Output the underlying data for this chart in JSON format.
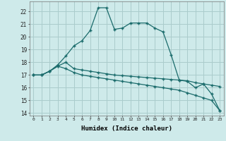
{
  "xlabel": "Humidex (Indice chaleur)",
  "background_color": "#ceeaea",
  "grid_color": "#aacccc",
  "line_color": "#1a6b6b",
  "xlim": [
    -0.5,
    23.5
  ],
  "ylim": [
    13.8,
    22.8
  ],
  "yticks": [
    14,
    15,
    16,
    17,
    18,
    19,
    20,
    21,
    22
  ],
  "xticks": [
    0,
    1,
    2,
    3,
    4,
    5,
    6,
    7,
    8,
    9,
    10,
    11,
    12,
    13,
    14,
    15,
    16,
    17,
    18,
    19,
    20,
    21,
    22,
    23
  ],
  "series1": [
    17,
    17,
    17.3,
    17.8,
    18.5,
    19.3,
    19.7,
    20.5,
    22.3,
    22.3,
    20.6,
    20.7,
    21.1,
    21.1,
    21.1,
    20.7,
    20.4,
    18.6,
    16.6,
    16.5,
    16.0,
    16.3,
    15.5,
    14.2
  ],
  "series2": [
    17,
    17,
    17.3,
    17.7,
    18.0,
    17.5,
    17.4,
    17.3,
    17.2,
    17.1,
    17.0,
    16.95,
    16.9,
    16.85,
    16.8,
    16.75,
    16.7,
    16.65,
    16.6,
    16.55,
    16.4,
    16.3,
    16.2,
    16.1
  ],
  "series3": [
    17,
    17,
    17.3,
    17.7,
    17.5,
    17.2,
    17.0,
    16.9,
    16.8,
    16.7,
    16.6,
    16.5,
    16.4,
    16.3,
    16.2,
    16.1,
    16.0,
    15.9,
    15.8,
    15.6,
    15.4,
    15.2,
    15.0,
    14.2
  ]
}
